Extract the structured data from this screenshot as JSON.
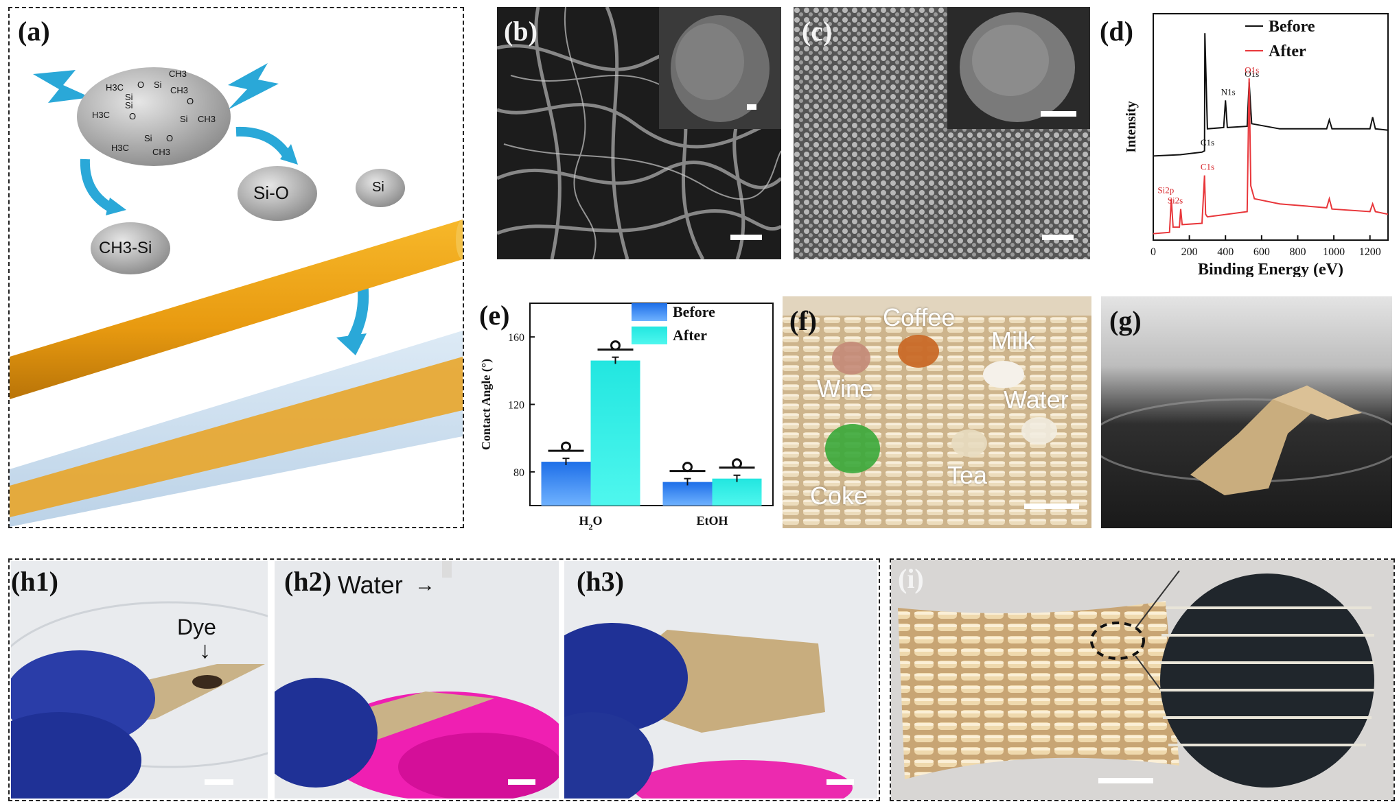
{
  "panels": {
    "a": {
      "label": "(a)",
      "molecule": [
        "H3C",
        "O",
        "Si",
        "CH3",
        "Si",
        "CH3",
        "H3C",
        "O",
        "Si",
        "O",
        "Si",
        "CH3",
        "H3C",
        "Si",
        "O",
        "CH3"
      ],
      "fragments": {
        "sio": "Si-O",
        "si": "Si",
        "ch3si": "CH3-Si"
      }
    },
    "b": {
      "label": "(b)"
    },
    "c": {
      "label": "(c)"
    },
    "d": {
      "label": "(d)"
    },
    "e": {
      "label": "(e)"
    },
    "f": {
      "label": "(f)",
      "liquids": [
        "Coffee",
        "Milk",
        "Wine",
        "Water",
        "Coke",
        "Tea"
      ]
    },
    "g": {
      "label": "(g)"
    },
    "h1": {
      "label": "(h1)",
      "dye_label": "Dye"
    },
    "h2": {
      "label": "(h2)",
      "water_label": "Water"
    },
    "h3": {
      "label": "(h3)"
    },
    "i": {
      "label": "(i)"
    }
  },
  "chart_data": [
    {
      "panel": "d",
      "type": "line",
      "xlabel": "Binding Energy (eV)",
      "ylabel": "Intensity",
      "xlim": [
        0,
        1300
      ],
      "xticks": [
        0,
        200,
        400,
        600,
        800,
        1000,
        1200
      ],
      "legend": {
        "placement": "top-right",
        "entries": [
          "Before",
          "After"
        ]
      },
      "series": [
        {
          "name": "Before",
          "color": "#111111",
          "x": [
            0,
            150,
            270,
            284,
            286,
            300,
            390,
            400,
            410,
            520,
            531,
            545,
            700,
            960,
            975,
            990,
            1200,
            1215,
            1230,
            1300
          ],
          "y": [
            0.65,
            0.66,
            0.68,
            0.69,
            1.6,
            0.86,
            0.87,
            1.08,
            0.87,
            0.88,
            1.22,
            0.9,
            0.86,
            0.86,
            0.93,
            0.86,
            0.86,
            0.95,
            0.86,
            0.85
          ]
        },
        {
          "name": "After",
          "color": "#e8363a",
          "x": [
            0,
            90,
            100,
            110,
            145,
            152,
            160,
            270,
            284,
            290,
            300,
            520,
            531,
            540,
            560,
            700,
            960,
            975,
            990,
            1200,
            1215,
            1230,
            1300
          ],
          "y": [
            0.05,
            0.06,
            0.32,
            0.1,
            0.1,
            0.24,
            0.12,
            0.13,
            0.5,
            0.2,
            0.18,
            0.22,
            1.25,
            0.42,
            0.32,
            0.28,
            0.25,
            0.32,
            0.24,
            0.22,
            0.28,
            0.22,
            0.2
          ]
        }
      ],
      "annotations": [
        {
          "text": "C1s",
          "series": "Before",
          "x": 285
        },
        {
          "text": "N1s",
          "series": "Before",
          "x": 400
        },
        {
          "text": "O1s",
          "series": "Before",
          "x": 531
        },
        {
          "text": "Si2p",
          "series": "After",
          "x": 100
        },
        {
          "text": "Si2s",
          "series": "After",
          "x": 152
        },
        {
          "text": "C1s",
          "series": "After",
          "x": 285
        },
        {
          "text": "O1s",
          "series": "After",
          "x": 531
        }
      ]
    },
    {
      "panel": "e",
      "type": "bar",
      "ylabel": "Contact Angle (°)",
      "ylim": [
        60,
        180
      ],
      "yticks": [
        80,
        120,
        160
      ],
      "categories": [
        "H2O",
        "EtOH"
      ],
      "legend": {
        "placement": "top-right",
        "entries": [
          "Before",
          "After"
        ]
      },
      "series": [
        {
          "name": "Before",
          "color": "#1e6fe8",
          "values": [
            86,
            74
          ],
          "errors": [
            2,
            2
          ]
        },
        {
          "name": "After",
          "color": "#22e6e0",
          "values": [
            146,
            76
          ],
          "errors": [
            2,
            2
          ]
        }
      ]
    }
  ]
}
